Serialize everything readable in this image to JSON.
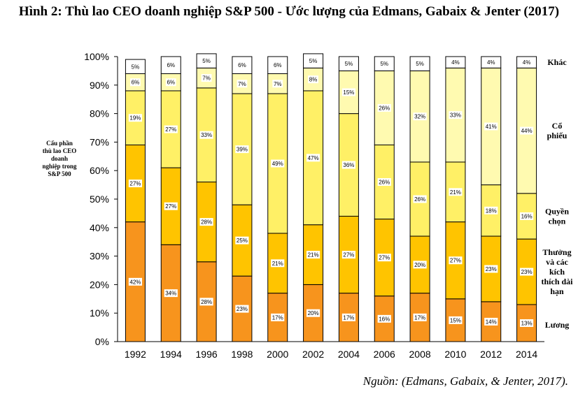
{
  "chart_data": {
    "type": "bar",
    "stacked": true,
    "title": "Hình 2: Thù lao CEO doanh nghiệp S&P 500 - Ước lượng của Edmans, Gabaix & Jenter (2017)",
    "ylabel": "Cấu phần thù lao CEO doanh nghiệp trong S&P 500",
    "xlabel": "",
    "ylim": [
      0,
      100
    ],
    "yticks": [
      "0%",
      "10%",
      "20%",
      "30%",
      "40%",
      "50%",
      "60%",
      "70%",
      "80%",
      "90%",
      "100%"
    ],
    "categories": [
      "1992",
      "1994",
      "1996",
      "1998",
      "2000",
      "2002",
      "2004",
      "2006",
      "2008",
      "2010",
      "2012",
      "2014"
    ],
    "series": [
      {
        "name": "Lương",
        "color": "#F7941D",
        "values": [
          42,
          34,
          28,
          23,
          17,
          20,
          17,
          16,
          17,
          15,
          14,
          13
        ]
      },
      {
        "name": "Thưởng và các kích thích dài hạn",
        "color": "#FFC400",
        "values": [
          27,
          27,
          28,
          25,
          21,
          21,
          27,
          27,
          20,
          27,
          23,
          23
        ]
      },
      {
        "name": "Quyền chọn",
        "color": "#FFF066",
        "values": [
          19,
          27,
          33,
          39,
          49,
          47,
          36,
          26,
          26,
          21,
          18,
          16
        ]
      },
      {
        "name": "Cổ phiếu",
        "color": "#FFFAB0",
        "values": [
          6,
          6,
          7,
          7,
          7,
          8,
          15,
          26,
          32,
          33,
          41,
          44
        ]
      },
      {
        "name": "Khác",
        "color": "#FFFFFF",
        "values": [
          5,
          6,
          5,
          6,
          6,
          5,
          5,
          5,
          5,
          4,
          4,
          4
        ]
      }
    ],
    "legend_placement": "right"
  },
  "source": "Nguồn: (Edmans, Gabaix, & Jenter, 2017)."
}
